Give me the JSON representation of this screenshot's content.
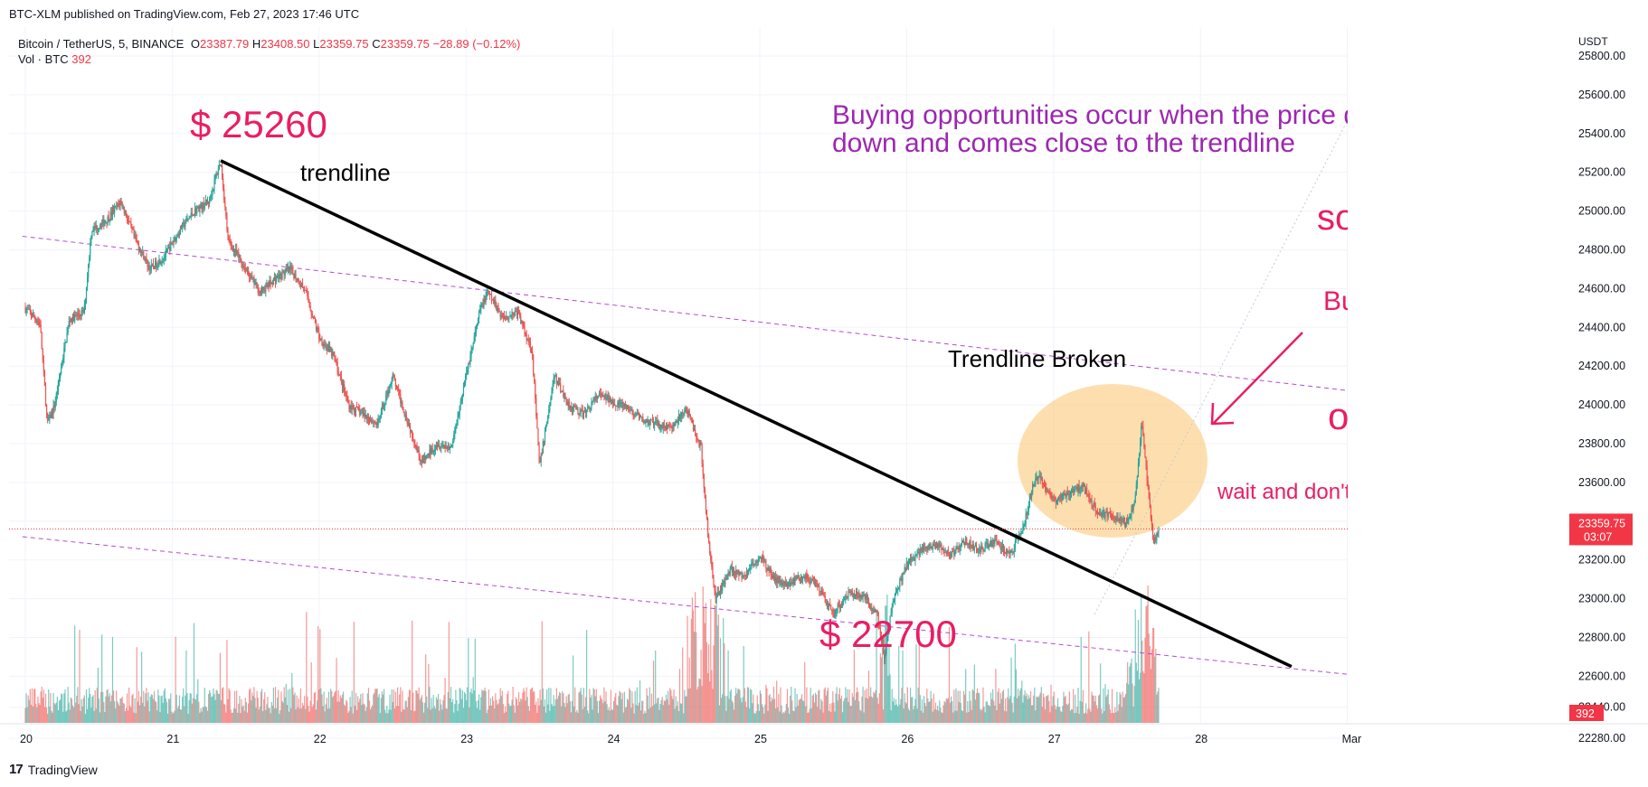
{
  "header": {
    "published_by": "BTC-XLM published on TradingView.com, Feb 27, 2023 17:46 UTC"
  },
  "legend": {
    "symbol": "Bitcoin / TetherUS, 5, BINANCE",
    "o_label": "O",
    "o_value": "23387.79",
    "h_label": "H",
    "h_value": "23408.50",
    "l_label": "L",
    "l_value": "23359.75",
    "c_label": "C",
    "c_value": "23359.75",
    "change": "−28.89 (−0.12%)",
    "vol_label": "Vol · BTC",
    "vol_value": "392"
  },
  "footer": {
    "brand": "TradingView",
    "logo_glyph": "17"
  },
  "colors": {
    "up": "#26a69a",
    "down": "#ef5350",
    "trendline": "#000000",
    "channel": "#b44bd6",
    "highlight": "#fbc97a",
    "annotation_pink": "#e91e63",
    "annotation_purple": "#9c27b0",
    "price_tag": "#f23645"
  },
  "chart_data": {
    "type": "candlestick",
    "symbol": "Bitcoin / TetherUS, 5, BINANCE",
    "y_axis_unit": "USDT",
    "y_ticks": [
      25800,
      25600,
      25400,
      25200,
      25000,
      24800,
      24600,
      24400,
      24200,
      24000,
      23800,
      23600,
      23400,
      23200,
      23000,
      22800,
      22600,
      22440,
      22280
    ],
    "y_range": [
      22160,
      25960
    ],
    "x_ticks": [
      "20",
      "21",
      "22",
      "23",
      "24",
      "25",
      "26",
      "27",
      "28",
      "Mar"
    ],
    "x_range": [
      19.98,
      29.1
    ],
    "current_price": "23359.75",
    "current_countdown": "03:07",
    "current_volume": "392",
    "price_path": [
      [
        20.0,
        24500
      ],
      [
        20.1,
        24420
      ],
      [
        20.15,
        23900
      ],
      [
        20.2,
        24000
      ],
      [
        20.3,
        24440
      ],
      [
        20.4,
        24480
      ],
      [
        20.45,
        24900
      ],
      [
        20.55,
        24950
      ],
      [
        20.65,
        25050
      ],
      [
        20.75,
        24850
      ],
      [
        20.85,
        24700
      ],
      [
        20.95,
        24770
      ],
      [
        21.05,
        24900
      ],
      [
        21.15,
        25000
      ],
      [
        21.25,
        25050
      ],
      [
        21.33,
        25260
      ],
      [
        21.38,
        24850
      ],
      [
        21.5,
        24700
      ],
      [
        21.6,
        24580
      ],
      [
        21.7,
        24650
      ],
      [
        21.8,
        24700
      ],
      [
        21.9,
        24600
      ],
      [
        22.0,
        24350
      ],
      [
        22.1,
        24250
      ],
      [
        22.2,
        24000
      ],
      [
        22.3,
        23950
      ],
      [
        22.4,
        23900
      ],
      [
        22.5,
        24150
      ],
      [
        22.6,
        23920
      ],
      [
        22.7,
        23700
      ],
      [
        22.8,
        23800
      ],
      [
        22.9,
        23780
      ],
      [
        23.0,
        24150
      ],
      [
        23.1,
        24500
      ],
      [
        23.15,
        24580
      ],
      [
        23.25,
        24450
      ],
      [
        23.35,
        24480
      ],
      [
        23.45,
        24280
      ],
      [
        23.5,
        23680
      ],
      [
        23.6,
        24150
      ],
      [
        23.7,
        24000
      ],
      [
        23.8,
        23950
      ],
      [
        23.9,
        24050
      ],
      [
        24.0,
        24020
      ],
      [
        24.1,
        23980
      ],
      [
        24.2,
        23920
      ],
      [
        24.3,
        23900
      ],
      [
        24.4,
        23880
      ],
      [
        24.5,
        23980
      ],
      [
        24.6,
        23780
      ],
      [
        24.65,
        23300
      ],
      [
        24.7,
        23000
      ],
      [
        24.8,
        23150
      ],
      [
        24.9,
        23120
      ],
      [
        25.0,
        23220
      ],
      [
        25.1,
        23100
      ],
      [
        25.2,
        23080
      ],
      [
        25.3,
        23120
      ],
      [
        25.4,
        23050
      ],
      [
        25.5,
        22920
      ],
      [
        25.6,
        23030
      ],
      [
        25.7,
        23020
      ],
      [
        25.8,
        22920
      ],
      [
        25.85,
        22700
      ],
      [
        25.9,
        22960
      ],
      [
        26.0,
        23180
      ],
      [
        26.1,
        23250
      ],
      [
        26.2,
        23280
      ],
      [
        26.3,
        23220
      ],
      [
        26.4,
        23300
      ],
      [
        26.5,
        23250
      ],
      [
        26.6,
        23300
      ],
      [
        26.7,
        23220
      ],
      [
        26.8,
        23380
      ],
      [
        26.85,
        23560
      ],
      [
        26.9,
        23640
      ],
      [
        27.0,
        23500
      ],
      [
        27.1,
        23550
      ],
      [
        27.2,
        23580
      ],
      [
        27.3,
        23450
      ],
      [
        27.4,
        23420
      ],
      [
        27.5,
        23400
      ],
      [
        27.55,
        23480
      ],
      [
        27.6,
        23900
      ],
      [
        27.65,
        23520
      ],
      [
        27.68,
        23280
      ],
      [
        27.72,
        23360
      ]
    ],
    "trendline": {
      "from": [
        21.33,
        25260
      ],
      "to": [
        28.62,
        22650
      ],
      "label": "trendline"
    },
    "channel_upper": {
      "from": [
        19.98,
        24870
      ],
      "to": [
        29.5,
        24030
      ]
    },
    "channel_lower": {
      "from": [
        19.98,
        23320
      ],
      "to": [
        29.0,
        22610
      ]
    },
    "annotations": {
      "high_price": "$ 25260",
      "low_price": "$ 22700",
      "trendline_label": "trendline",
      "broken_label": "Trendline Broken",
      "note": "Buying opportunities occur when the price drops down and comes close to the trendline",
      "so": "so",
      "buy": "Buy",
      "or": "or",
      "wait": "wait and don't hurt yourself"
    }
  }
}
